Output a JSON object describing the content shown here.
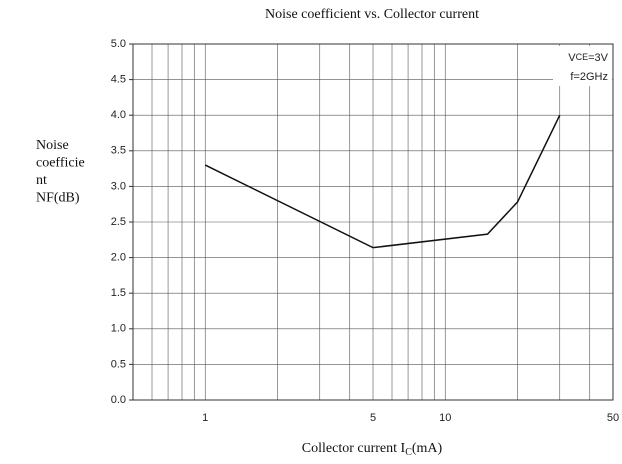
{
  "chart_data": {
    "type": "line",
    "title": "Noise coefficient vs. Collector current",
    "ylabel_lines": [
      "Noise",
      "coefficie",
      "nt",
      "NF(dB)"
    ],
    "xlabel": {
      "text": "Collector current I",
      "sub": "C",
      "suffix": "(mA)"
    },
    "annotations": [
      {
        "text": "V",
        "sub": "CE",
        "suffix": "=3V"
      },
      {
        "text": "f=2GHz"
      }
    ],
    "x": [
      1,
      5,
      15,
      20,
      30
    ],
    "series": [
      {
        "name": "NF",
        "color": "#111111",
        "values": [
          3.3,
          2.14,
          2.33,
          2.78,
          4.0
        ]
      }
    ],
    "xscale": "log",
    "xlim": [
      0.5,
      50
    ],
    "xticks": [
      1,
      5,
      10,
      50
    ],
    "xminor_ticks": [
      0.5,
      0.6,
      0.7,
      0.8,
      0.9,
      2,
      3,
      4,
      6,
      7,
      8,
      9,
      20,
      30,
      40
    ],
    "ylim": [
      0,
      5
    ],
    "yticks": [
      {
        "value": 0,
        "label": "0.0"
      },
      {
        "value": 0.5,
        "label": "0.5"
      },
      {
        "value": 1,
        "label": "1.0"
      },
      {
        "value": 1.5,
        "label": "1.5"
      },
      {
        "value": 2,
        "label": "2.0"
      },
      {
        "value": 2.5,
        "label": "2.5"
      },
      {
        "value": 3,
        "label": "3.0"
      },
      {
        "value": 3.5,
        "label": "3.5"
      },
      {
        "value": 4,
        "label": "4.0"
      },
      {
        "value": 4.5,
        "label": "4.5"
      },
      {
        "value": 5,
        "label": "5.0"
      }
    ],
    "grid": true
  }
}
